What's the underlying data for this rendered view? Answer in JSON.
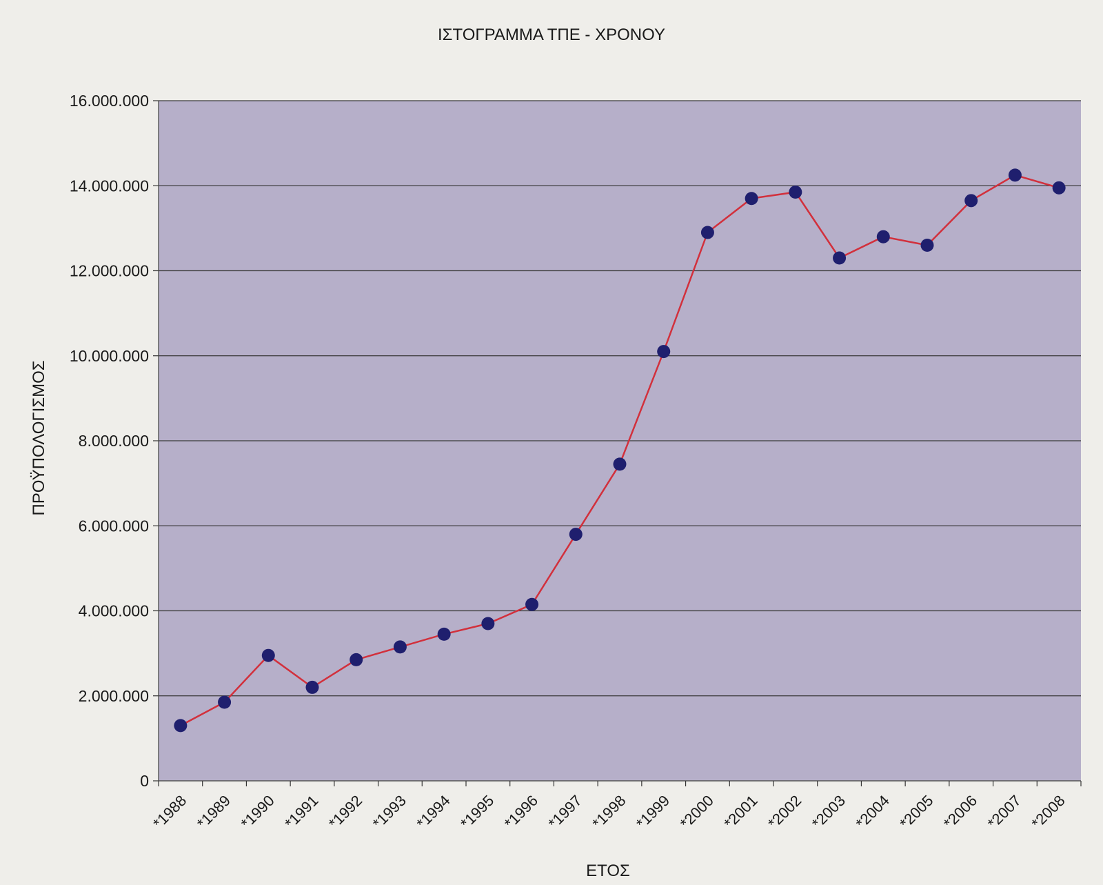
{
  "chart_data": {
    "type": "line",
    "title": "ΙΣΤΟΓΡΑΜΜΑ ΤΠΕ - ΧΡΟΝΟΥ",
    "xlabel": "ΕΤΟΣ",
    "ylabel": "ΠΡΟΫΠΟΛΟΓΙΣΜΟΣ",
    "categories": [
      "*1988",
      "*1989",
      "*1990",
      "*1991",
      "*1992",
      "*1993",
      "*1994",
      "*1995",
      "*1996",
      "*1997",
      "*1998",
      "*1999",
      "*2000",
      "*2001",
      "*2002",
      "*2003",
      "*2004",
      "*2005",
      "*2006",
      "*2007",
      "*2008"
    ],
    "values": [
      1300000,
      1850000,
      2950000,
      2200000,
      2850000,
      3150000,
      3450000,
      3700000,
      4150000,
      5800000,
      7450000,
      10100000,
      12900000,
      13700000,
      13850000,
      12300000,
      12800000,
      12600000,
      13650000,
      14250000,
      13950000
    ],
    "ylim": [
      0,
      16000000
    ],
    "yticks": [
      0,
      2000000,
      4000000,
      6000000,
      8000000,
      10000000,
      12000000,
      14000000,
      16000000
    ],
    "ytick_labels": [
      "0",
      "2.000.000",
      "4.000.000",
      "6.000.000",
      "8.000.000",
      "10.000.000",
      "12.000.000",
      "14.000.000",
      "16.000.000"
    ],
    "grid": true,
    "legend": "none",
    "colors": {
      "plot_background": "#b6afc9",
      "line": "#d2303c",
      "marker": "#1f1f6e",
      "grid": "#3a3a3a",
      "page_background": "#efeeea"
    }
  }
}
